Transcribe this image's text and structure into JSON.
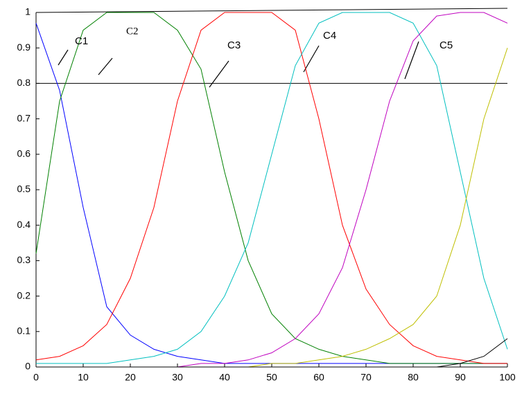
{
  "chart_data": {
    "type": "line",
    "x": [
      0,
      5,
      10,
      15,
      20,
      25,
      30,
      35,
      40,
      45,
      50,
      55,
      60,
      65,
      70,
      75,
      80,
      85,
      90,
      95,
      100
    ],
    "series": [
      {
        "color": "#0000ff",
        "values": [
          0.97,
          0.78,
          0.45,
          0.17,
          0.09,
          0.05,
          0.03,
          0.02,
          0.01,
          0.01,
          0.01,
          0.01,
          0.01,
          0.01,
          0.01,
          0.01,
          0.01,
          0.01,
          0.01,
          0.01,
          0.01
        ]
      },
      {
        "color": "#008000",
        "values": [
          0.32,
          0.75,
          0.95,
          1,
          1,
          1,
          0.95,
          0.84,
          0.55,
          0.3,
          0.15,
          0.08,
          0.05,
          0.03,
          0.02,
          0.01,
          0.01,
          0.01,
          0.01,
          0.01,
          0.01
        ]
      },
      {
        "color": "#ff0000",
        "values": [
          0.02,
          0.03,
          0.06,
          0.12,
          0.25,
          0.45,
          0.75,
          0.95,
          1,
          1,
          1,
          0.95,
          0.7,
          0.4,
          0.22,
          0.12,
          0.06,
          0.03,
          0.02,
          0.01,
          0.01
        ]
      },
      {
        "color": "#00bfbf",
        "values": [
          0.01,
          0.01,
          0.01,
          0.01,
          0.02,
          0.03,
          0.05,
          0.1,
          0.2,
          0.35,
          0.6,
          0.85,
          0.97,
          1,
          1,
          1,
          0.97,
          0.85,
          0.55,
          0.25,
          0.05
        ]
      },
      {
        "color": "#bf00bf",
        "values": [
          0,
          0,
          0,
          0,
          0,
          0,
          0,
          0.01,
          0.01,
          0.02,
          0.04,
          0.08,
          0.15,
          0.28,
          0.5,
          0.75,
          0.92,
          0.99,
          1,
          1,
          0.97
        ]
      },
      {
        "color": "#bfbf00",
        "values": [
          0,
          0,
          0,
          0,
          0,
          0,
          0,
          0,
          0,
          0,
          0.01,
          0.01,
          0.02,
          0.03,
          0.05,
          0.08,
          0.12,
          0.2,
          0.4,
          0.7,
          0.9
        ]
      },
      {
        "color": "#000000",
        "values": [
          0,
          0,
          0,
          0,
          0,
          0,
          0,
          0,
          0,
          0,
          0,
          0,
          0,
          0,
          0,
          0,
          0,
          0,
          0.01,
          0.03,
          0.08
        ]
      }
    ],
    "xlim": [
      0,
      100
    ],
    "xticks": [
      0,
      10,
      20,
      30,
      40,
      50,
      60,
      70,
      80,
      90,
      100
    ],
    "ylim": [
      0,
      1
    ],
    "yticks": [
      0,
      0.1,
      0.2,
      0.3,
      0.4,
      0.5,
      0.6,
      0.7,
      0.8,
      0.9,
      1
    ],
    "reference_line": 0.8,
    "annotations": [
      "C1",
      "C2",
      "C3",
      "C4",
      "C5"
    ]
  }
}
